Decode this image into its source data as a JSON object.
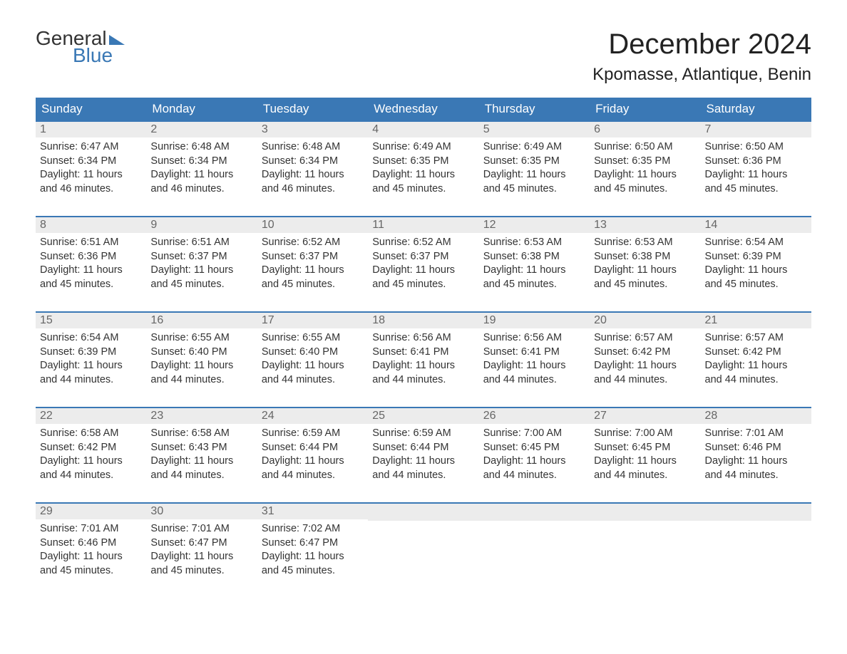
{
  "logo": {
    "general": "General",
    "blue": "Blue"
  },
  "header": {
    "month_title": "December 2024",
    "location": "Kpomasse, Atlantique, Benin"
  },
  "colors": {
    "accent": "#3a78b5",
    "header_bg": "#3a78b5",
    "header_text": "#ffffff",
    "day_number_bg": "#ececec",
    "day_number_text": "#666666",
    "body_text": "#333333",
    "background": "#ffffff"
  },
  "calendar": {
    "weekdays": [
      "Sunday",
      "Monday",
      "Tuesday",
      "Wednesday",
      "Thursday",
      "Friday",
      "Saturday"
    ],
    "label_prefix": {
      "sunrise": "Sunrise: ",
      "sunset": "Sunset: ",
      "daylight": "Daylight: "
    },
    "weeks": [
      [
        {
          "n": "1",
          "sunrise": "6:47 AM",
          "sunset": "6:34 PM",
          "daylight_l1": "11 hours",
          "daylight_l2": "and 46 minutes."
        },
        {
          "n": "2",
          "sunrise": "6:48 AM",
          "sunset": "6:34 PM",
          "daylight_l1": "11 hours",
          "daylight_l2": "and 46 minutes."
        },
        {
          "n": "3",
          "sunrise": "6:48 AM",
          "sunset": "6:34 PM",
          "daylight_l1": "11 hours",
          "daylight_l2": "and 46 minutes."
        },
        {
          "n": "4",
          "sunrise": "6:49 AM",
          "sunset": "6:35 PM",
          "daylight_l1": "11 hours",
          "daylight_l2": "and 45 minutes."
        },
        {
          "n": "5",
          "sunrise": "6:49 AM",
          "sunset": "6:35 PM",
          "daylight_l1": "11 hours",
          "daylight_l2": "and 45 minutes."
        },
        {
          "n": "6",
          "sunrise": "6:50 AM",
          "sunset": "6:35 PM",
          "daylight_l1": "11 hours",
          "daylight_l2": "and 45 minutes."
        },
        {
          "n": "7",
          "sunrise": "6:50 AM",
          "sunset": "6:36 PM",
          "daylight_l1": "11 hours",
          "daylight_l2": "and 45 minutes."
        }
      ],
      [
        {
          "n": "8",
          "sunrise": "6:51 AM",
          "sunset": "6:36 PM",
          "daylight_l1": "11 hours",
          "daylight_l2": "and 45 minutes."
        },
        {
          "n": "9",
          "sunrise": "6:51 AM",
          "sunset": "6:37 PM",
          "daylight_l1": "11 hours",
          "daylight_l2": "and 45 minutes."
        },
        {
          "n": "10",
          "sunrise": "6:52 AM",
          "sunset": "6:37 PM",
          "daylight_l1": "11 hours",
          "daylight_l2": "and 45 minutes."
        },
        {
          "n": "11",
          "sunrise": "6:52 AM",
          "sunset": "6:37 PM",
          "daylight_l1": "11 hours",
          "daylight_l2": "and 45 minutes."
        },
        {
          "n": "12",
          "sunrise": "6:53 AM",
          "sunset": "6:38 PM",
          "daylight_l1": "11 hours",
          "daylight_l2": "and 45 minutes."
        },
        {
          "n": "13",
          "sunrise": "6:53 AM",
          "sunset": "6:38 PM",
          "daylight_l1": "11 hours",
          "daylight_l2": "and 45 minutes."
        },
        {
          "n": "14",
          "sunrise": "6:54 AM",
          "sunset": "6:39 PM",
          "daylight_l1": "11 hours",
          "daylight_l2": "and 45 minutes."
        }
      ],
      [
        {
          "n": "15",
          "sunrise": "6:54 AM",
          "sunset": "6:39 PM",
          "daylight_l1": "11 hours",
          "daylight_l2": "and 44 minutes."
        },
        {
          "n": "16",
          "sunrise": "6:55 AM",
          "sunset": "6:40 PM",
          "daylight_l1": "11 hours",
          "daylight_l2": "and 44 minutes."
        },
        {
          "n": "17",
          "sunrise": "6:55 AM",
          "sunset": "6:40 PM",
          "daylight_l1": "11 hours",
          "daylight_l2": "and 44 minutes."
        },
        {
          "n": "18",
          "sunrise": "6:56 AM",
          "sunset": "6:41 PM",
          "daylight_l1": "11 hours",
          "daylight_l2": "and 44 minutes."
        },
        {
          "n": "19",
          "sunrise": "6:56 AM",
          "sunset": "6:41 PM",
          "daylight_l1": "11 hours",
          "daylight_l2": "and 44 minutes."
        },
        {
          "n": "20",
          "sunrise": "6:57 AM",
          "sunset": "6:42 PM",
          "daylight_l1": "11 hours",
          "daylight_l2": "and 44 minutes."
        },
        {
          "n": "21",
          "sunrise": "6:57 AM",
          "sunset": "6:42 PM",
          "daylight_l1": "11 hours",
          "daylight_l2": "and 44 minutes."
        }
      ],
      [
        {
          "n": "22",
          "sunrise": "6:58 AM",
          "sunset": "6:42 PM",
          "daylight_l1": "11 hours",
          "daylight_l2": "and 44 minutes."
        },
        {
          "n": "23",
          "sunrise": "6:58 AM",
          "sunset": "6:43 PM",
          "daylight_l1": "11 hours",
          "daylight_l2": "and 44 minutes."
        },
        {
          "n": "24",
          "sunrise": "6:59 AM",
          "sunset": "6:44 PM",
          "daylight_l1": "11 hours",
          "daylight_l2": "and 44 minutes."
        },
        {
          "n": "25",
          "sunrise": "6:59 AM",
          "sunset": "6:44 PM",
          "daylight_l1": "11 hours",
          "daylight_l2": "and 44 minutes."
        },
        {
          "n": "26",
          "sunrise": "7:00 AM",
          "sunset": "6:45 PM",
          "daylight_l1": "11 hours",
          "daylight_l2": "and 44 minutes."
        },
        {
          "n": "27",
          "sunrise": "7:00 AM",
          "sunset": "6:45 PM",
          "daylight_l1": "11 hours",
          "daylight_l2": "and 44 minutes."
        },
        {
          "n": "28",
          "sunrise": "7:01 AM",
          "sunset": "6:46 PM",
          "daylight_l1": "11 hours",
          "daylight_l2": "and 44 minutes."
        }
      ],
      [
        {
          "n": "29",
          "sunrise": "7:01 AM",
          "sunset": "6:46 PM",
          "daylight_l1": "11 hours",
          "daylight_l2": "and 45 minutes."
        },
        {
          "n": "30",
          "sunrise": "7:01 AM",
          "sunset": "6:47 PM",
          "daylight_l1": "11 hours",
          "daylight_l2": "and 45 minutes."
        },
        {
          "n": "31",
          "sunrise": "7:02 AM",
          "sunset": "6:47 PM",
          "daylight_l1": "11 hours",
          "daylight_l2": "and 45 minutes."
        },
        null,
        null,
        null,
        null
      ]
    ]
  }
}
